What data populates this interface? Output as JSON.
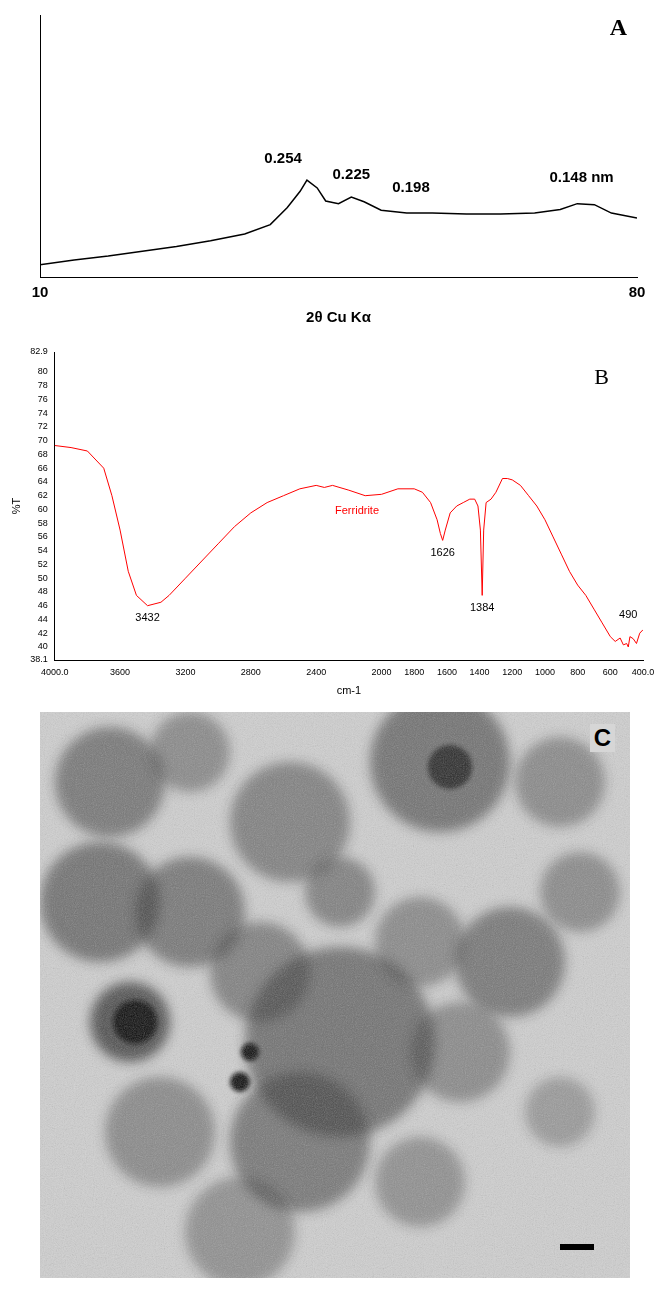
{
  "chart_data": [
    {
      "panel": "A",
      "type": "line",
      "x_label": "2θ Cu Kα",
      "color": "#000000",
      "x": [
        10,
        14,
        18,
        22,
        26,
        30,
        34,
        37,
        39,
        40.5,
        41.3,
        42.5,
        43.5,
        45,
        46.5,
        48,
        50,
        53,
        56,
        60,
        64,
        68,
        71,
        73,
        75,
        77,
        80
      ],
      "values": [
        4.7,
        6.5,
        8,
        9.8,
        11.6,
        13.8,
        16.4,
        20,
        26.5,
        32.7,
        37,
        34,
        29,
        28,
        30.5,
        28.7,
        25.5,
        24.4,
        24.4,
        24,
        24,
        24.4,
        25.8,
        28,
        27.6,
        24.4,
        22.5
      ],
      "xlim": [
        10,
        80
      ],
      "xticks": [
        10,
        80
      ],
      "ylim": [
        0,
        100
      ],
      "tick_labels": "x",
      "grid": false,
      "annotations": [
        {
          "text": "0.254",
          "x": 38.5,
          "y": 45
        },
        {
          "text": "0.225",
          "x": 46.5,
          "y": 39
        },
        {
          "text": "0.198",
          "x": 53.5,
          "y": 34
        },
        {
          "text": "0.148 nm",
          "x": 73.5,
          "y": 38
        }
      ]
    },
    {
      "panel": "B",
      "type": "line",
      "x_label": "cm-1",
      "y_label": "%T",
      "color": "#ff0000",
      "x": [
        4000,
        3900,
        3800,
        3700,
        3650,
        3600,
        3550,
        3500,
        3432,
        3350,
        3300,
        3200,
        3100,
        3000,
        2900,
        2800,
        2700,
        2600,
        2500,
        2400,
        2350,
        2300,
        2200,
        2100,
        2000,
        1900,
        1800,
        1750,
        1700,
        1660,
        1640,
        1626,
        1610,
        1580,
        1540,
        1500,
        1460,
        1430,
        1410,
        1395,
        1384,
        1375,
        1360,
        1330,
        1300,
        1260,
        1230,
        1200,
        1150,
        1100,
        1050,
        1000,
        950,
        900,
        850,
        800,
        750,
        700,
        650,
        600,
        570,
        540,
        520,
        500,
        490,
        480,
        460,
        440,
        420,
        400
      ],
      "values": [
        69.3,
        69,
        68.5,
        66,
        62,
        57,
        51,
        47.5,
        46,
        46.5,
        47.5,
        50,
        52.5,
        55,
        57.5,
        59.5,
        61,
        62,
        63,
        63.5,
        63.2,
        63.5,
        62.8,
        62,
        62.2,
        63,
        63,
        62.5,
        61,
        58.5,
        56.5,
        55.5,
        57,
        59.5,
        60.5,
        61,
        61.5,
        61.5,
        60.5,
        57,
        47.5,
        57,
        61,
        61.5,
        62.5,
        64.5,
        64.5,
        64.3,
        63.5,
        62,
        60.5,
        58.5,
        56,
        53.5,
        51,
        49,
        47.5,
        45.5,
        43.5,
        41.5,
        40.8,
        41.3,
        40.3,
        40.5,
        40,
        41.5,
        41.2,
        40.5,
        42,
        42.5
      ],
      "xlim": [
        4000,
        400
      ],
      "xticks": [
        {
          "value": 4000,
          "label": "4000.0"
        },
        3600,
        3200,
        2800,
        2400,
        2000,
        1800,
        1600,
        1400,
        1200,
        1000,
        800,
        600,
        {
          "value": 400,
          "label": "400.0"
        }
      ],
      "ylim": [
        38.1,
        82.9
      ],
      "yticks": [
        38.1,
        40,
        42,
        44,
        46,
        48,
        50,
        52,
        54,
        56,
        58,
        60,
        62,
        64,
        66,
        68,
        70,
        72,
        74,
        76,
        78,
        80,
        82.9
      ],
      "grid": false,
      "annotations": [
        {
          "text": "Ferridrite",
          "x": 2150,
          "y": 59.8,
          "color": "#ff0000"
        },
        {
          "text": "3432",
          "x": 3432,
          "y": 44.2
        },
        {
          "text": "1626",
          "x": 1626,
          "y": 53.6
        },
        {
          "text": "1384",
          "x": 1384,
          "y": 45.6
        },
        {
          "text": "490",
          "x": 490,
          "y": 44.6
        }
      ]
    },
    {
      "panel": "C",
      "type": "image"
    }
  ]
}
